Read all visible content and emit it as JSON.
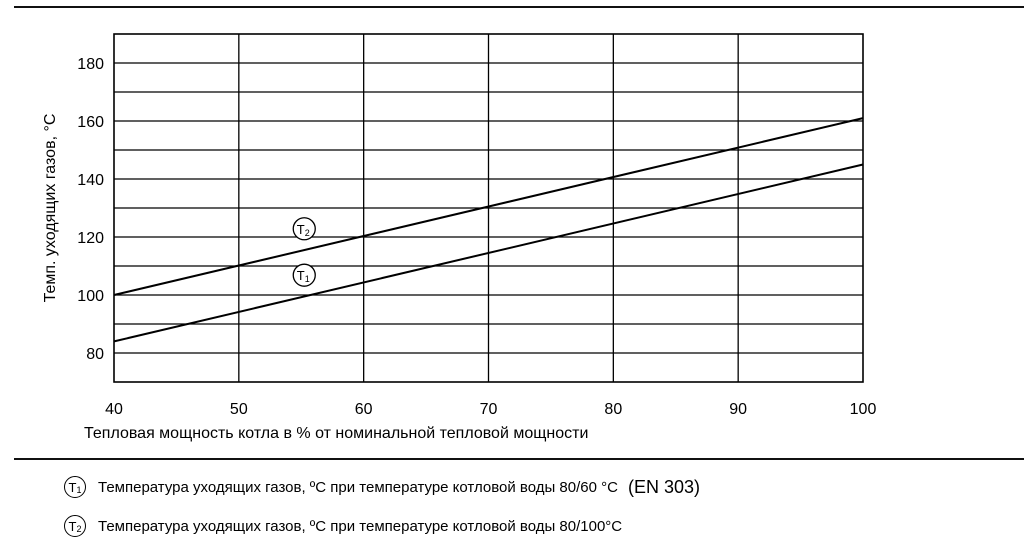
{
  "chart_data": {
    "type": "line",
    "xlabel": "Тепловая мощность котла в % от номинальной тепловой мощности",
    "ylabel": "Темп. уходящих газов, °C",
    "xlim": [
      40,
      100
    ],
    "ylim": [
      70,
      190
    ],
    "xticks": [
      40,
      50,
      60,
      70,
      80,
      90,
      100
    ],
    "yticks": [
      80,
      100,
      120,
      140,
      160,
      180
    ],
    "grid": true,
    "series": [
      {
        "name": "T2",
        "letter": "T",
        "index": "2",
        "x": [
          40,
          100
        ],
        "y": [
          100,
          161
        ]
      },
      {
        "name": "T1",
        "letter": "T",
        "index": "1",
        "x": [
          40,
          100
        ],
        "y": [
          84,
          145
        ]
      }
    ]
  },
  "legend": [
    {
      "letter": "T",
      "index": "1",
      "text": "Температура уходящих газов, ºC при температуре котловой воды 80/60 °C",
      "suffix": "(EN 303)"
    },
    {
      "letter": "T",
      "index": "2",
      "text": "Температура уходящих газов, ºC при температуре котловой воды 80/100°C",
      "suffix": ""
    }
  ]
}
